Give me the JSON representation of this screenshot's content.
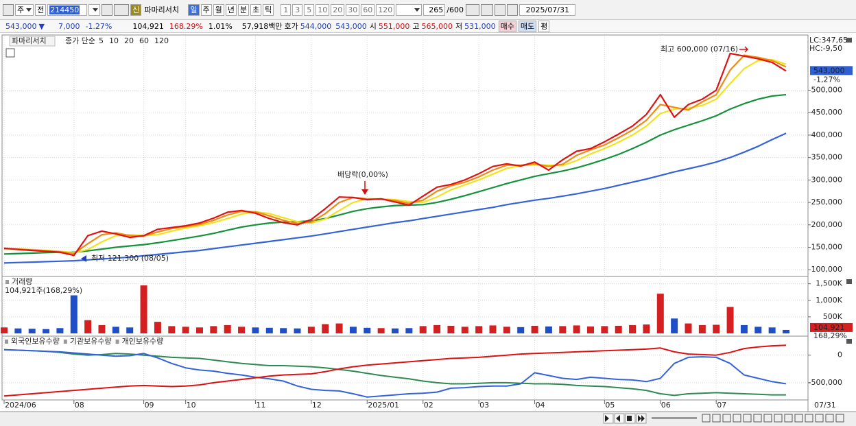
{
  "toolbar": {
    "market": "주",
    "prev": "전",
    "code": "214450",
    "badge": "신",
    "name": "파마리서치",
    "periods": [
      "일",
      "주",
      "월",
      "년",
      "분",
      "초",
      "틱"
    ],
    "intervals": [
      "1",
      "3",
      "5",
      "10",
      "20",
      "30",
      "60",
      "120"
    ],
    "count": "265",
    "max": "/600",
    "date": "2025/07/31"
  },
  "quote": {
    "price": "543,000",
    "arrow": "▼",
    "change": "7,000",
    "rate": "-1.27%",
    "volume": "104,921",
    "volume_rate": "168.29%",
    "turnover": "1.01%",
    "amount": "57,918백만",
    "bid_label": "호가",
    "ask": "544,000",
    "bid": "543,000",
    "open_label": "시",
    "open": "551,000",
    "high_label": "고",
    "high": "565,000",
    "low_label": "저",
    "low": "531,000",
    "buttons": [
      "매수",
      "매도",
      "평"
    ]
  },
  "chart_data": [
    {
      "type": "line",
      "title": "파마리서치",
      "legend_label": "종가 단순",
      "categories": [
        "2024/06",
        null,
        null,
        null,
        null,
        "08",
        null,
        null,
        null,
        null,
        "09",
        null,
        null,
        "10",
        null,
        null,
        null,
        null,
        "11",
        null,
        null,
        null,
        "12",
        null,
        null,
        null,
        "2025/01",
        null,
        null,
        null,
        "02",
        null,
        null,
        null,
        "03",
        null,
        null,
        null,
        "04",
        null,
        null,
        null,
        null,
        "05",
        null,
        null,
        null,
        "06",
        null,
        null,
        null,
        "07",
        null,
        null,
        null,
        null,
        null
      ],
      "x_end_label": "07/31",
      "series": [
        {
          "name": "5",
          "color": "#e01010",
          "values": [
            148000,
            145000,
            143000,
            141000,
            139000,
            132000,
            176000,
            186000,
            180000,
            172000,
            176000,
            190000,
            194000,
            198000,
            204000,
            215000,
            228000,
            232000,
            226000,
            214000,
            205000,
            200000,
            212000,
            236000,
            262000,
            261000,
            256000,
            258000,
            251000,
            244000,
            264000,
            284000,
            290000,
            300000,
            314000,
            330000,
            336000,
            331000,
            340000,
            322000,
            345000,
            364000,
            370000,
            385000,
            402000,
            420000,
            446000,
            490000,
            440000,
            468000,
            480000,
            500000,
            582000,
            576000,
            570000,
            562000,
            543000
          ]
        },
        {
          "name": "10",
          "color": "#f08a10",
          "values": [
            147000,
            146000,
            144000,
            142000,
            140000,
            136000,
            158000,
            178000,
            182000,
            176000,
            175000,
            184000,
            192000,
            196000,
            201000,
            210000,
            222000,
            230000,
            229000,
            220000,
            210000,
            203000,
            206000,
            225000,
            250000,
            261000,
            258000,
            257000,
            254000,
            248000,
            255000,
            275000,
            287000,
            295000,
            307000,
            322000,
            333000,
            333000,
            336000,
            330000,
            335000,
            355000,
            367000,
            378000,
            394000,
            411000,
            433000,
            468000,
            462000,
            456000,
            474000,
            490000,
            545000,
            578000,
            573000,
            566000,
            552000
          ]
        },
        {
          "name": "20",
          "color": "#f2e21a",
          "values": [
            146000,
            146000,
            145000,
            143000,
            141000,
            138000,
            145000,
            162000,
            176000,
            178000,
            176000,
            178000,
            186000,
            193000,
            198000,
            205000,
            214000,
            224000,
            229000,
            225000,
            216000,
            207000,
            204000,
            213000,
            232000,
            250000,
            258000,
            258000,
            256000,
            252000,
            250000,
            262000,
            278000,
            289000,
            300000,
            313000,
            326000,
            332000,
            334000,
            333000,
            332000,
            343000,
            358000,
            370000,
            384000,
            400000,
            420000,
            448000,
            458000,
            460000,
            466000,
            480000,
            515000,
            548000,
            566000,
            568000,
            558000
          ]
        },
        {
          "name": "60",
          "color": "#14923a",
          "values": [
            135000,
            136000,
            137000,
            138000,
            139000,
            139000,
            142000,
            146000,
            150000,
            153000,
            156000,
            160000,
            165000,
            170000,
            175000,
            181000,
            188000,
            195000,
            200000,
            204000,
            206000,
            207000,
            209000,
            214000,
            222000,
            230000,
            236000,
            240000,
            243000,
            244000,
            245000,
            250000,
            257000,
            265000,
            274000,
            283000,
            292000,
            300000,
            308000,
            314000,
            320000,
            327000,
            336000,
            346000,
            357000,
            370000,
            384000,
            400000,
            412000,
            422000,
            432000,
            443000,
            458000,
            470000,
            480000,
            487000,
            490000
          ]
        },
        {
          "name": "120",
          "color": "#3462dc",
          "values": [
            115000,
            116000,
            117000,
            118000,
            119000,
            120000,
            122000,
            124000,
            126000,
            128000,
            131000,
            134000,
            137000,
            140000,
            143000,
            147000,
            151000,
            155000,
            159000,
            163000,
            167000,
            171000,
            175000,
            180000,
            185000,
            190000,
            195000,
            200000,
            205000,
            209000,
            214000,
            219000,
            224000,
            229000,
            234000,
            239000,
            245000,
            250000,
            255000,
            259000,
            264000,
            269000,
            275000,
            281000,
            288000,
            295000,
            302000,
            310000,
            318000,
            325000,
            332000,
            340000,
            350000,
            362000,
            375000,
            390000,
            404000
          ]
        }
      ],
      "ylim": [
        85000,
        620000
      ],
      "yticks": [
        {
          "value": 100000,
          "label": "100,000"
        },
        {
          "value": 150000,
          "label": "150,000"
        },
        {
          "value": 200000,
          "label": "200,000"
        },
        {
          "value": 250000,
          "label": "250,000"
        },
        {
          "value": 300000,
          "label": "300,000"
        },
        {
          "value": 350000,
          "label": "350,000"
        },
        {
          "value": 400000,
          "label": "400,000"
        },
        {
          "value": 450000,
          "label": "450,000"
        },
        {
          "value": 500000,
          "label": "500,000"
        }
      ],
      "grid": true,
      "annotations": {
        "high": "최고 600,000 (07/16)",
        "low": "최저 121,300 (08/05)",
        "dividend": "배당락(0,00%)"
      },
      "indicators": [
        "LC:347,65",
        "HC:-9,50"
      ],
      "last_price": "543,000",
      "last_rate": "-1,27%"
    },
    {
      "type": "bar",
      "title": "거래량",
      "subtitle": "104,921주(168,29%)",
      "values": [
        180000,
        150000,
        140000,
        130000,
        160000,
        1150000,
        400000,
        250000,
        200000,
        180000,
        1450000,
        350000,
        220000,
        200000,
        180000,
        220000,
        250000,
        200000,
        180000,
        170000,
        160000,
        150000,
        200000,
        280000,
        300000,
        200000,
        170000,
        160000,
        150000,
        160000,
        220000,
        250000,
        230000,
        200000,
        220000,
        240000,
        200000,
        190000,
        230000,
        210000,
        220000,
        240000,
        210000,
        220000,
        230000,
        250000,
        270000,
        1200000,
        450000,
        300000,
        250000,
        260000,
        800000,
        250000,
        200000,
        180000,
        104921
      ],
      "up_color": "#d42020",
      "down_color": "#1f4fc8",
      "ylim": [
        0,
        1700000
      ],
      "yticks": [
        {
          "value": 500000,
          "label": "500K"
        },
        {
          "value": 1000000,
          "label": "1,000K"
        },
        {
          "value": 1500000,
          "label": "1,500K"
        }
      ],
      "last_value_label": "104,921",
      "last_rate_label": "168,29%"
    },
    {
      "type": "line",
      "series": [
        {
          "name": "외국인보유수량",
          "color": "#e01010",
          "values": [
            -740000,
            -720000,
            -700000,
            -680000,
            -660000,
            -640000,
            -620000,
            -600000,
            -580000,
            -560000,
            -550000,
            -560000,
            -570000,
            -560000,
            -540000,
            -500000,
            -470000,
            -440000,
            -410000,
            -380000,
            -360000,
            -350000,
            -340000,
            -300000,
            -250000,
            -210000,
            -180000,
            -160000,
            -140000,
            -120000,
            -100000,
            -80000,
            -60000,
            -50000,
            -40000,
            -20000,
            0,
            20000,
            30000,
            40000,
            50000,
            60000,
            70000,
            80000,
            90000,
            100000,
            110000,
            130000,
            60000,
            20000,
            10000,
            0,
            50000,
            120000,
            150000,
            170000,
            180000
          ]
        },
        {
          "name": "기관보유수량",
          "color": "#3462dc",
          "values": [
            100000,
            90000,
            80000,
            70000,
            60000,
            40000,
            20000,
            0,
            -20000,
            -10000,
            30000,
            -50000,
            -150000,
            -230000,
            -270000,
            -290000,
            -330000,
            -360000,
            -400000,
            -430000,
            -470000,
            -560000,
            -620000,
            -640000,
            -650000,
            -700000,
            -760000,
            -740000,
            -720000,
            -700000,
            -690000,
            -670000,
            -600000,
            -590000,
            -570000,
            -560000,
            -560000,
            -520000,
            -320000,
            -370000,
            -420000,
            -440000,
            -400000,
            -420000,
            -440000,
            -450000,
            -480000,
            -420000,
            -150000,
            -40000,
            -30000,
            -40000,
            -150000,
            -360000,
            -420000,
            -480000,
            -520000
          ]
        },
        {
          "name": "개인보유수량",
          "color": "#2e8a50",
          "values": [
            100000,
            90000,
            80000,
            70000,
            50000,
            20000,
            0,
            10000,
            30000,
            20000,
            0,
            -20000,
            -40000,
            -50000,
            -60000,
            -90000,
            -120000,
            -150000,
            -170000,
            -190000,
            -190000,
            -200000,
            -210000,
            -230000,
            -260000,
            -290000,
            -330000,
            -370000,
            -400000,
            -430000,
            -470000,
            -500000,
            -520000,
            -520000,
            -510000,
            -500000,
            -500000,
            -510000,
            -520000,
            -520000,
            -530000,
            -550000,
            -560000,
            -570000,
            -590000,
            -610000,
            -640000,
            -700000,
            -730000,
            -700000,
            -690000,
            -680000,
            -690000,
            -700000,
            -710000,
            -720000,
            -720000
          ]
        }
      ],
      "ylim": [
        -800000,
        320000
      ],
      "yticks": [
        0,
        {
          "value": -500000,
          "label": "-500,000"
        }
      ]
    }
  ]
}
